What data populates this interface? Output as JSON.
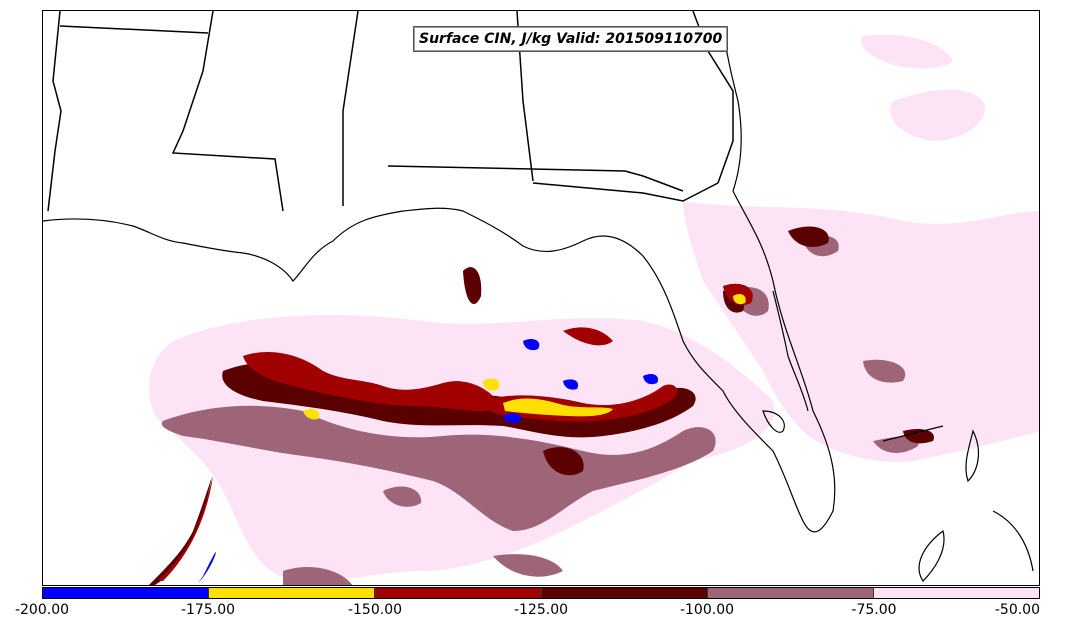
{
  "title": "Surface CIN, J/kg Valid: 201509110700",
  "colorbar": {
    "labels": [
      "-200.00",
      "-175.00",
      "-150.00",
      "-125.00",
      "-100.00",
      "-75.00",
      "-50.00"
    ],
    "bins": [
      {
        "min": -200,
        "max": -175,
        "color": "#0000ff"
      },
      {
        "min": -175,
        "max": -150,
        "color": "#ffe000"
      },
      {
        "min": -150,
        "max": -125,
        "color": "#a00000"
      },
      {
        "min": -125,
        "max": -100,
        "color": "#5a0000"
      },
      {
        "min": -100,
        "max": -75,
        "color": "#9e6478"
      },
      {
        "min": -75,
        "max": -50,
        "color": "#fce4f6"
      }
    ]
  },
  "map": {
    "field": "Surface CIN",
    "units": "J/kg",
    "region": "Gulf of Mexico / Southeast US"
  }
}
